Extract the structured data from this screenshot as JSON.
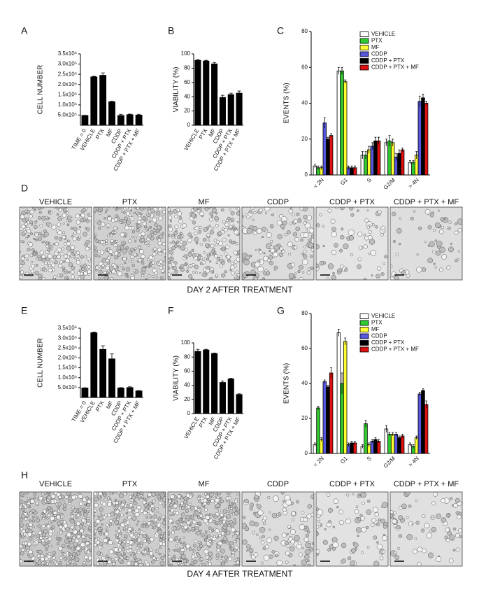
{
  "chart_data": [
    {
      "panel": "A",
      "type": "bar",
      "ylabel": "CELL NUMBER",
      "color": "#000000",
      "categories": [
        "TIME = 0",
        "VEHICLE",
        "PTX",
        "MF",
        "CDDP",
        "CDDP + PTX",
        "CDDP + PTX + MF"
      ],
      "values": [
        480000,
        2370000,
        2450000,
        1150000,
        480000,
        520000,
        500000
      ],
      "errors": [
        10000,
        30000,
        120000,
        30000,
        60000,
        30000,
        40000
      ],
      "ylim": [
        0,
        3500000
      ],
      "yticks": [
        {
          "value": 500000,
          "label": "5.0x10⁵"
        },
        {
          "value": 1000000,
          "label": "1.0x10⁶"
        },
        {
          "value": 1500000,
          "label": "1.5x10⁶"
        },
        {
          "value": 2000000,
          "label": "2.0x10⁶"
        },
        {
          "value": 2500000,
          "label": "2.5x10⁶"
        },
        {
          "value": 3000000,
          "label": "3.0x10⁶"
        },
        {
          "value": 3500000,
          "label": "3.5x10⁶"
        }
      ]
    },
    {
      "panel": "B",
      "type": "bar",
      "ylabel": "VIABILITY (%)",
      "color": "#000000",
      "categories": [
        "VEHICLE",
        "PTX",
        "MF",
        "CDDP",
        "CDDP + PTX",
        "CDDP + PTX + MF"
      ],
      "values": [
        91,
        90,
        86,
        39,
        43,
        45
      ],
      "errors": [
        1,
        1,
        2,
        3,
        2,
        3
      ],
      "ylim": [
        0,
        100
      ],
      "yticks": [
        0,
        20,
        40,
        60,
        80,
        100
      ]
    },
    {
      "panel": "C",
      "type": "bar",
      "ylabel": "EVENTS (%)",
      "legend": "upper right",
      "categories": [
        "< 2N",
        "G1",
        "S",
        "G2/M",
        "> 4N"
      ],
      "series": [
        {
          "name": "VEHICLE",
          "color": "#ffffff",
          "values": [
            5,
            58,
            11,
            18,
            7
          ],
          "errors": [
            1,
            2,
            2,
            2,
            1
          ]
        },
        {
          "name": "PTX",
          "color": "#2ecc2e",
          "values": [
            4,
            58,
            11,
            19,
            7
          ],
          "errors": [
            1,
            2,
            2,
            3,
            1
          ]
        },
        {
          "name": "MF",
          "color": "#ffff33",
          "values": [
            4,
            52,
            14,
            18,
            11
          ],
          "errors": [
            1,
            1,
            2,
            2,
            2
          ]
        },
        {
          "name": "CDDP",
          "color": "#5555dd",
          "values": [
            29,
            4,
            16,
            10,
            41
          ],
          "errors": [
            3,
            1,
            2,
            2,
            3
          ]
        },
        {
          "name": "CDDP + PTX",
          "color": "#000000",
          "values": [
            20,
            4,
            19,
            12,
            43
          ],
          "errors": [
            1,
            1,
            2,
            2,
            2
          ]
        },
        {
          "name": "CDDP + PTX + MF",
          "color": "#dd1111",
          "values": [
            22,
            4,
            19,
            14,
            40
          ],
          "errors": [
            1,
            1,
            2,
            1,
            1
          ]
        }
      ],
      "ylim": [
        0,
        80
      ],
      "yticks": [
        0,
        20,
        40,
        60,
        80
      ]
    },
    {
      "panel": "E",
      "type": "bar",
      "ylabel": "CELL NUMBER",
      "color": "#000000",
      "categories": [
        "TIME = 0",
        "VEHICLE",
        "PTX",
        "MF",
        "CDDP",
        "CDDP + PTX",
        "CDDP + PTX + MF"
      ],
      "values": [
        480000,
        3270000,
        2430000,
        1950000,
        480000,
        500000,
        330000
      ],
      "errors": [
        10000,
        40000,
        180000,
        250000,
        20000,
        40000,
        20000
      ],
      "ylim": [
        0,
        3500000
      ],
      "yticks": [
        {
          "value": 500000,
          "label": "5.0x10⁵"
        },
        {
          "value": 1000000,
          "label": "1.0x10⁶"
        },
        {
          "value": 1500000,
          "label": "1.5x10⁶"
        },
        {
          "value": 2000000,
          "label": "2.0x10⁶"
        },
        {
          "value": 2500000,
          "label": "2.5x10⁶"
        },
        {
          "value": 3000000,
          "label": "3.0x10⁶"
        },
        {
          "value": 3500000,
          "label": "3.5x10⁶"
        }
      ]
    },
    {
      "panel": "F",
      "type": "bar",
      "ylabel": "VIABILITY (%)",
      "color": "#000000",
      "categories": [
        "VEHICLE",
        "PTX",
        "MF",
        "CDDP",
        "CDDP + PTX",
        "CDDP + PTX + MF"
      ],
      "values": [
        88,
        90,
        85,
        44,
        49,
        27
      ],
      "errors": [
        3,
        1,
        0.5,
        2,
        1,
        1
      ],
      "ylim": [
        0,
        100
      ],
      "yticks": [
        0,
        20,
        40,
        60,
        80,
        100
      ]
    },
    {
      "panel": "G",
      "type": "bar",
      "ylabel": "EVENTS (%)",
      "legend": "upper right",
      "categories": [
        "< 2N",
        "G1",
        "S",
        "G2/M",
        "> 4N"
      ],
      "series": [
        {
          "name": "VEHICLE",
          "color": "#ffffff",
          "values": [
            5,
            69,
            4,
            14,
            5
          ],
          "errors": [
            1,
            2,
            1,
            2,
            1
          ]
        },
        {
          "name": "PTX",
          "color": "#2ecc2e",
          "values": [
            26,
            40,
            17,
            11,
            4
          ],
          "errors": [
            1,
            6,
            2,
            1,
            1
          ]
        },
        {
          "name": "MF",
          "color": "#ffff33",
          "values": [
            8,
            64,
            5,
            11,
            9
          ],
          "errors": [
            1,
            2,
            1,
            1,
            1
          ]
        },
        {
          "name": "CDDP",
          "color": "#5555dd",
          "values": [
            41,
            5,
            7,
            11,
            34
          ],
          "errors": [
            1,
            1,
            1,
            1,
            1
          ]
        },
        {
          "name": "CDDP + PTX",
          "color": "#000000",
          "values": [
            38,
            6,
            8,
            9,
            36
          ],
          "errors": [
            1,
            1,
            1,
            1,
            1
          ]
        },
        {
          "name": "CDDP + PTX + MF",
          "color": "#dd1111",
          "values": [
            46,
            6,
            7,
            10,
            28
          ],
          "errors": [
            3,
            1,
            1,
            1,
            2
          ]
        }
      ],
      "ylim": [
        0,
        80
      ],
      "yticks": [
        0,
        20,
        40,
        60,
        80
      ]
    }
  ],
  "images": [
    {
      "panel": "D",
      "labels": [
        "VEHICLE",
        "PTX",
        "MF",
        "CDDP",
        "CDDP + PTX",
        "CDDP + PTX + MF"
      ],
      "caption": "DAY 2  AFTER TREATMENT"
    },
    {
      "panel": "H",
      "labels": [
        "VEHICLE",
        "PTX",
        "MF",
        "CDDP",
        "CDDP + PTX",
        "CDDP + PTX + MF"
      ],
      "caption": "DAY 4  AFTER TREATMENT"
    }
  ]
}
